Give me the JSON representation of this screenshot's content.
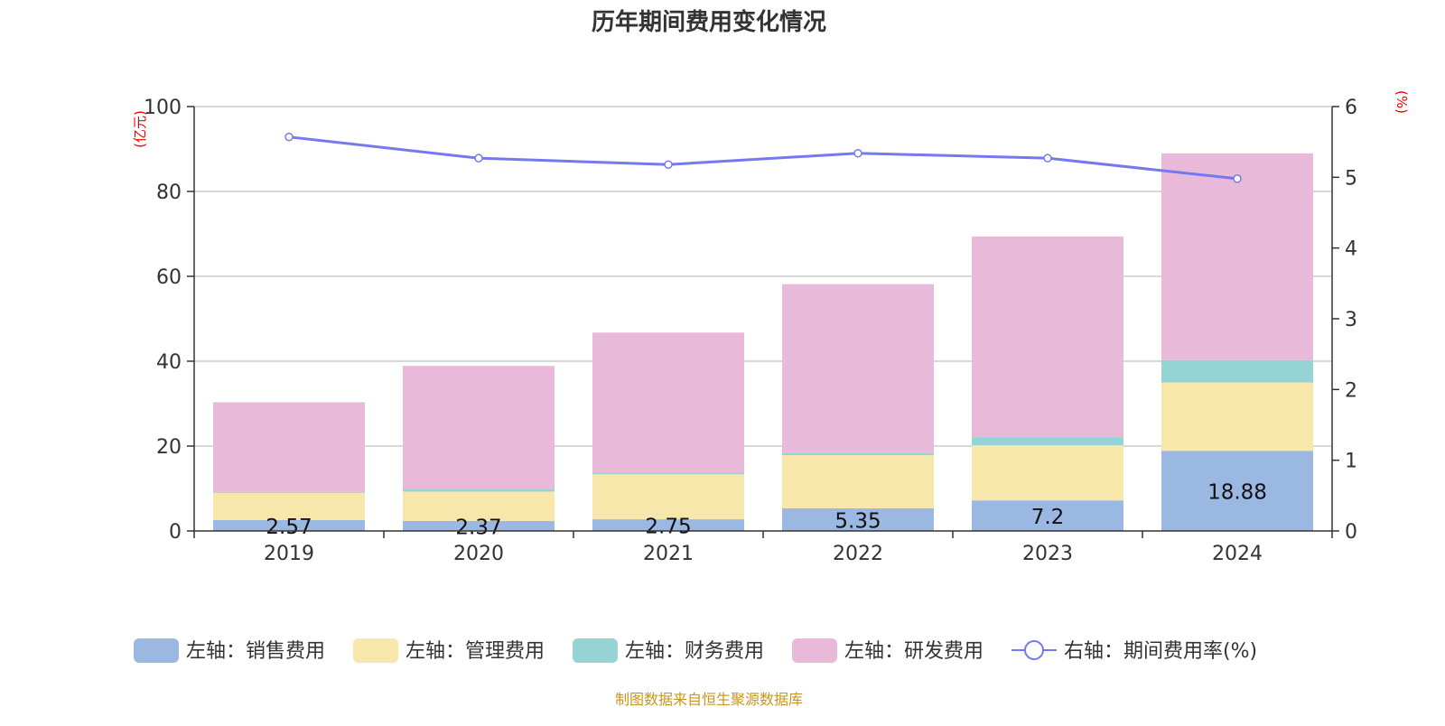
{
  "chart_data": {
    "type": "bar",
    "stacked": true,
    "title": "历年期间费用变化情况",
    "categories": [
      "2019",
      "2020",
      "2021",
      "2022",
      "2023",
      "2024"
    ],
    "left_axis": {
      "unit": "(亿元)",
      "ylim": [
        0,
        100
      ],
      "ticks": [
        "0",
        "20",
        "40",
        "60",
        "80",
        "100"
      ]
    },
    "right_axis": {
      "unit": "(%)",
      "ylim": [
        0,
        6
      ],
      "ticks": [
        "0",
        "1",
        "2",
        "3",
        "4",
        "5",
        "6"
      ]
    },
    "grid": true,
    "legend_position": "bottom",
    "series": [
      {
        "name": "左轴：销售费用",
        "axis": "left",
        "color": "#9bb8e2",
        "values": [
          2.57,
          2.37,
          2.75,
          5.35,
          7.2,
          18.88
        ],
        "labels": [
          "2.57",
          "2.37",
          "2.75",
          "5.35",
          "7.2",
          "18.88"
        ]
      },
      {
        "name": "左轴：管理费用",
        "axis": "left",
        "color": "#f8e7aa",
        "values": [
          6.4,
          6.9,
          10.6,
          12.5,
          13.0,
          16.1
        ]
      },
      {
        "name": "左轴：财务费用",
        "axis": "left",
        "color": "#96d3d4",
        "values": [
          0.25,
          0.6,
          0.4,
          0.5,
          1.9,
          5.3
        ]
      },
      {
        "name": "左轴：研发费用",
        "axis": "left",
        "color": "#e8b9d9",
        "values": [
          21.1,
          29.0,
          33.0,
          39.8,
          47.3,
          48.7
        ]
      },
      {
        "name": "右轴：期间费用率(%)",
        "axis": "right",
        "type": "line",
        "color": "#7479ef",
        "values": [
          5.57,
          5.27,
          5.18,
          5.34,
          5.27,
          4.98
        ]
      }
    ],
    "source": "制图数据来自恒生聚源数据库"
  }
}
